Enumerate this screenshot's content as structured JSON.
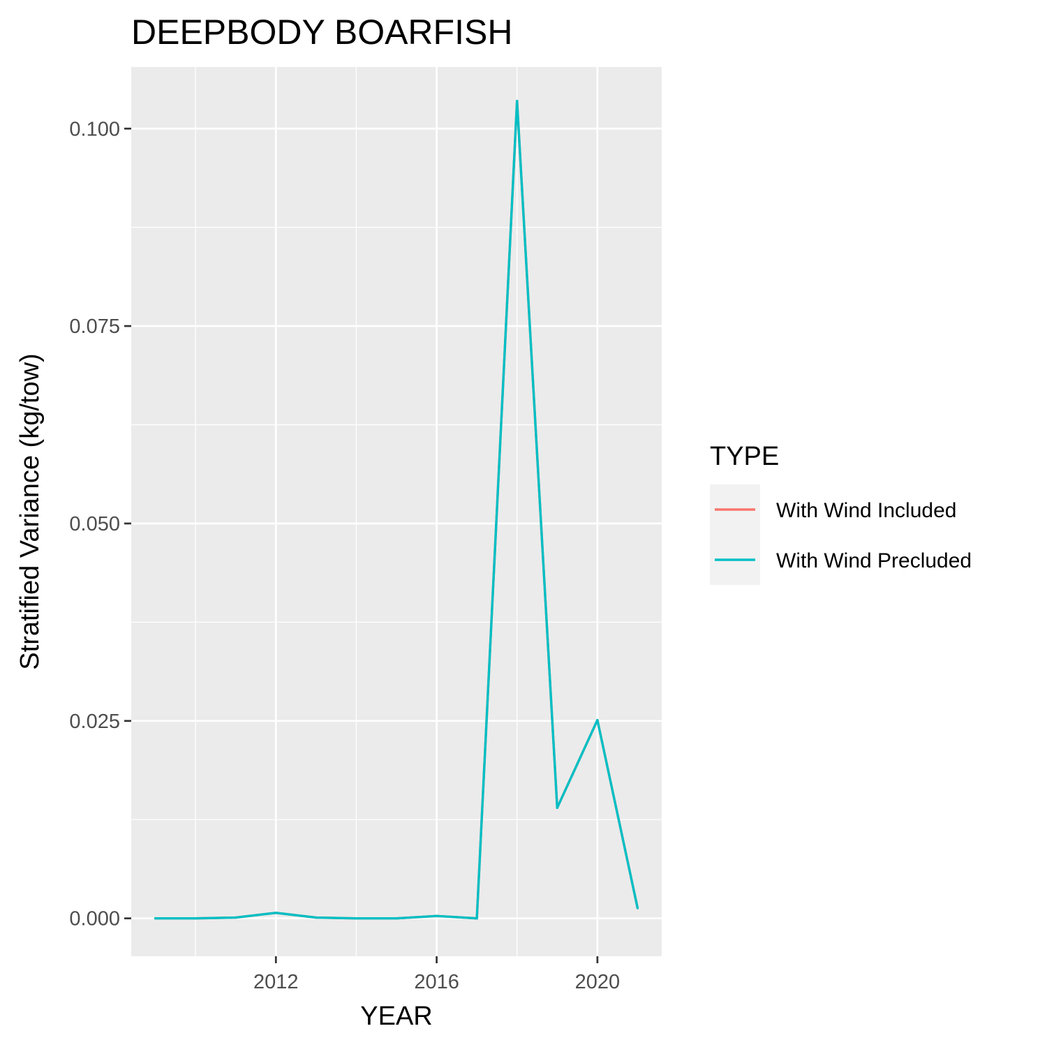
{
  "chart_data": {
    "type": "line",
    "title": "DEEPBODY BOARFISH",
    "xlabel": "YEAR",
    "ylabel": "Stratified Variance (kg/tow)",
    "xlim": [
      2008.4,
      2021.6
    ],
    "ylim": [
      -0.0048,
      0.1078
    ],
    "x_ticks": [
      2012,
      2016,
      2020
    ],
    "x_tick_labels": [
      "2012",
      "2016",
      "2020"
    ],
    "y_ticks": [
      0,
      0.025,
      0.05,
      0.075,
      0.1
    ],
    "y_tick_labels": [
      "0.000",
      "0.025",
      "0.050",
      "0.075",
      "0.100"
    ],
    "grid": true,
    "legend": {
      "title": "TYPE",
      "position": "right"
    },
    "x": [
      2009,
      2010,
      2011,
      2012,
      2013,
      2014,
      2015,
      2016,
      2017,
      2018,
      2019,
      2020,
      2021
    ],
    "series": [
      {
        "name": "With Wind Included",
        "color": "#F8766D",
        "values": [
          0.0,
          0.0,
          0.0001,
          0.0007,
          0.0001,
          0.0,
          0.0,
          0.0003,
          0.0,
          0.1035,
          0.014,
          0.0251,
          0.0013
        ]
      },
      {
        "name": "With Wind Precluded",
        "color": "#00BFC4",
        "values": [
          0.0,
          0.0,
          0.0001,
          0.0007,
          0.0001,
          0.0,
          0.0,
          0.0003,
          0.0,
          0.1035,
          0.014,
          0.0251,
          0.0013
        ]
      }
    ],
    "colors": {
      "panel_background": "#EBEBEB",
      "grid_major": "#FFFFFF",
      "legend_key_background": "#F2F2F2",
      "tick_label": "#4D4D4D"
    }
  }
}
